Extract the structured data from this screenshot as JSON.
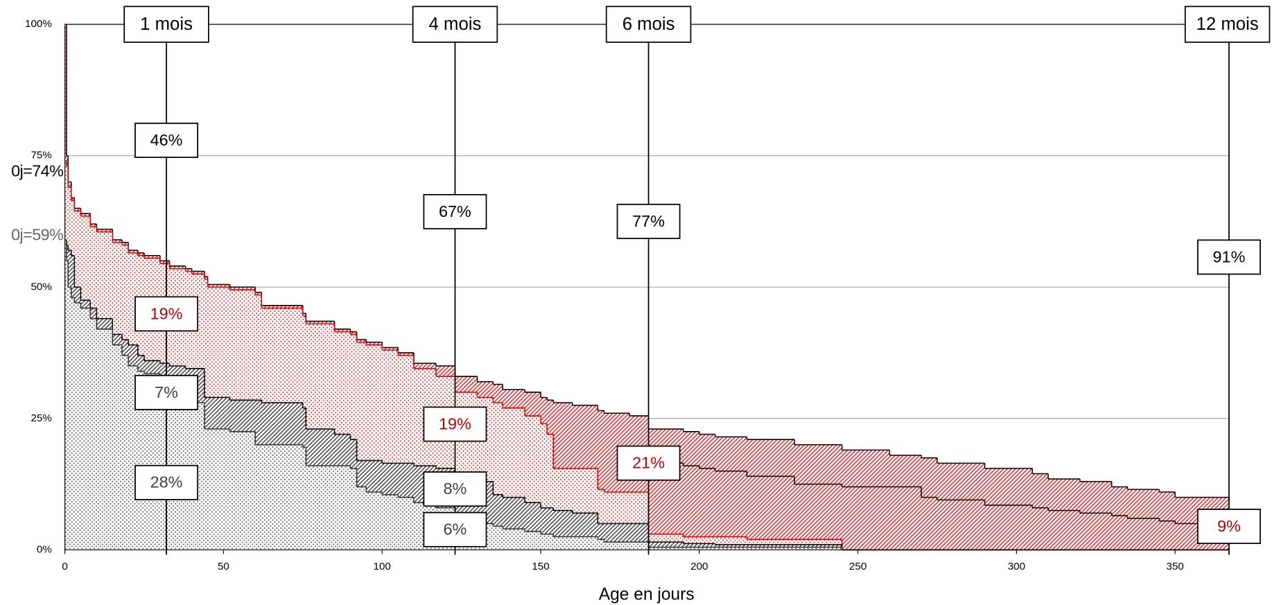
{
  "chart_data": {
    "type": "step-area",
    "x_label": "Age en jours",
    "xlim": [
      0,
      367
    ],
    "ylim": [
      0,
      100
    ],
    "xticks": [
      0,
      50,
      100,
      150,
      200,
      250,
      300,
      350
    ],
    "yticks": [
      {
        "value": 0,
        "label": "0%"
      },
      {
        "value": 25,
        "label": "25%"
      },
      {
        "value": 50,
        "label": "50%"
      },
      {
        "value": 75,
        "label": "75%"
      },
      {
        "value": 100,
        "label": "100%"
      }
    ],
    "grid": true,
    "x": [
      0,
      0.5,
      1,
      2,
      3,
      5,
      8,
      10,
      15,
      18,
      20,
      23,
      25,
      30,
      33,
      38,
      40,
      44,
      45,
      52,
      60,
      62,
      75,
      76,
      85,
      90,
      92,
      95,
      100,
      105,
      110,
      117,
      123,
      130,
      135,
      138,
      145,
      150,
      152,
      154,
      160,
      168,
      170,
      178,
      184,
      195,
      200,
      205,
      215,
      230,
      245,
      260,
      270,
      275,
      290,
      305,
      310,
      320,
      330,
      335,
      345,
      350,
      367
    ],
    "series": [
      {
        "color": "#000000",
        "fill": {
          "color": "#e8262a",
          "pattern": "hatch"
        },
        "values": [
          100,
          75,
          70,
          67,
          65,
          64,
          62,
          61,
          59,
          58.5,
          57,
          56.5,
          56,
          55,
          54,
          53.5,
          53,
          52,
          50.5,
          50,
          49,
          46.5,
          45,
          43.5,
          42,
          41.5,
          40,
          39.5,
          38.5,
          37.5,
          35.5,
          35,
          33,
          32,
          31.5,
          30.5,
          30,
          29,
          28.5,
          28,
          27.5,
          26.5,
          26,
          25.5,
          23,
          22.5,
          22,
          21.5,
          21,
          20,
          19,
          18,
          17.5,
          16.5,
          15.5,
          14.5,
          13.5,
          13,
          12,
          11.5,
          11,
          10,
          9
        ]
      },
      {
        "color": "#e00000",
        "fill": {
          "color": "#e8262a",
          "pattern": "dots"
        },
        "values": [
          74,
          73,
          69,
          66.5,
          64.5,
          63.5,
          61.5,
          60.5,
          58.5,
          58,
          56.5,
          56,
          55.5,
          54.5,
          53.5,
          53,
          52.5,
          51.5,
          50,
          49.5,
          48.5,
          46,
          44.5,
          43,
          41.5,
          41,
          39.5,
          39,
          38,
          37,
          34.5,
          33,
          30,
          29,
          28,
          27,
          25.5,
          24,
          22,
          15.5,
          15.5,
          11.5,
          11,
          11,
          3,
          2.5,
          2.5,
          2.5,
          2,
          2,
          0,
          0,
          0,
          0,
          0,
          0,
          0,
          0,
          0,
          0,
          0,
          0,
          0
        ]
      },
      {
        "color": "#000000",
        "fill": {
          "color": "#444444",
          "pattern": "hatch"
        },
        "values": [
          59,
          58,
          57,
          56,
          50,
          47.5,
          46,
          44,
          41,
          40,
          39,
          37,
          36,
          35.5,
          35,
          34.5,
          34.5,
          29,
          29,
          28.5,
          28.5,
          28,
          27,
          23,
          22,
          21,
          17,
          17,
          16.5,
          16.5,
          16,
          15.5,
          14,
          13,
          10.5,
          10,
          9,
          8,
          8,
          7.5,
          7,
          5,
          5,
          5,
          1.5,
          1.2,
          1.2,
          1,
          1,
          1,
          0,
          0,
          0,
          0,
          0,
          0,
          0,
          0,
          0,
          0,
          0,
          0,
          0
        ]
      },
      {
        "color": "#333333",
        "fill": {
          "color": "#555555",
          "pattern": "dots"
        },
        "values": [
          59,
          55,
          50,
          48,
          47,
          46,
          44,
          42,
          39,
          37,
          35,
          34,
          33.5,
          32,
          28,
          28,
          28,
          23,
          23,
          22.5,
          20,
          20,
          19.5,
          16,
          16,
          15.5,
          12,
          11,
          10.5,
          10,
          9,
          8,
          6,
          5,
          4.5,
          4,
          3.5,
          3,
          3,
          2.5,
          2.5,
          2,
          1.5,
          1.5,
          0.5,
          0.5,
          0.5,
          0.5,
          0.5,
          0.5,
          0,
          0,
          0,
          0,
          0,
          0,
          0,
          0,
          0,
          0,
          0,
          0,
          0
        ]
      },
      {
        "color": "#000000",
        "values": [
          null,
          null,
          null,
          null,
          null,
          null,
          null,
          null,
          null,
          null,
          null,
          null,
          null,
          null,
          null,
          null,
          null,
          null,
          null,
          null,
          null,
          null,
          null,
          null,
          null,
          null,
          null,
          null,
          null,
          null,
          null,
          null,
          null,
          null,
          null,
          null,
          null,
          null,
          null,
          null,
          null,
          null,
          null,
          null,
          16.5,
          16,
          15.5,
          15,
          14,
          12.5,
          12,
          12,
          10,
          9.5,
          8.5,
          8,
          7.5,
          7,
          6.5,
          6,
          5.5,
          5,
          5
        ]
      }
    ],
    "start_labels": [
      {
        "text": "0j=74%",
        "color": "#000000"
      },
      {
        "text": "0j=59%",
        "color": "#666666"
      }
    ],
    "markers": [
      {
        "label": "1 mois",
        "x": 32,
        "boxes": [
          {
            "text": "46%",
            "color": "#000000"
          },
          {
            "text": "19%",
            "color": "#c00000"
          },
          {
            "text": "7%",
            "color": "#404040"
          },
          {
            "text": "28%",
            "color": "#404040"
          }
        ]
      },
      {
        "label": "4 mois",
        "x": 123,
        "boxes": [
          {
            "text": "67%",
            "color": "#000000"
          },
          {
            "text": "19%",
            "color": "#c00000"
          },
          {
            "text": "8%",
            "color": "#404040"
          },
          {
            "text": "6%",
            "color": "#404040"
          }
        ]
      },
      {
        "label": "6 mois",
        "x": 184,
        "boxes": [
          {
            "text": "77%",
            "color": "#000000"
          },
          {
            "text": "21%",
            "color": "#c00000"
          }
        ]
      },
      {
        "label": "12 mois",
        "x": 367,
        "boxes": [
          {
            "text": "91%",
            "color": "#000000"
          },
          {
            "text": "9%",
            "color": "#c00000"
          }
        ]
      }
    ]
  }
}
